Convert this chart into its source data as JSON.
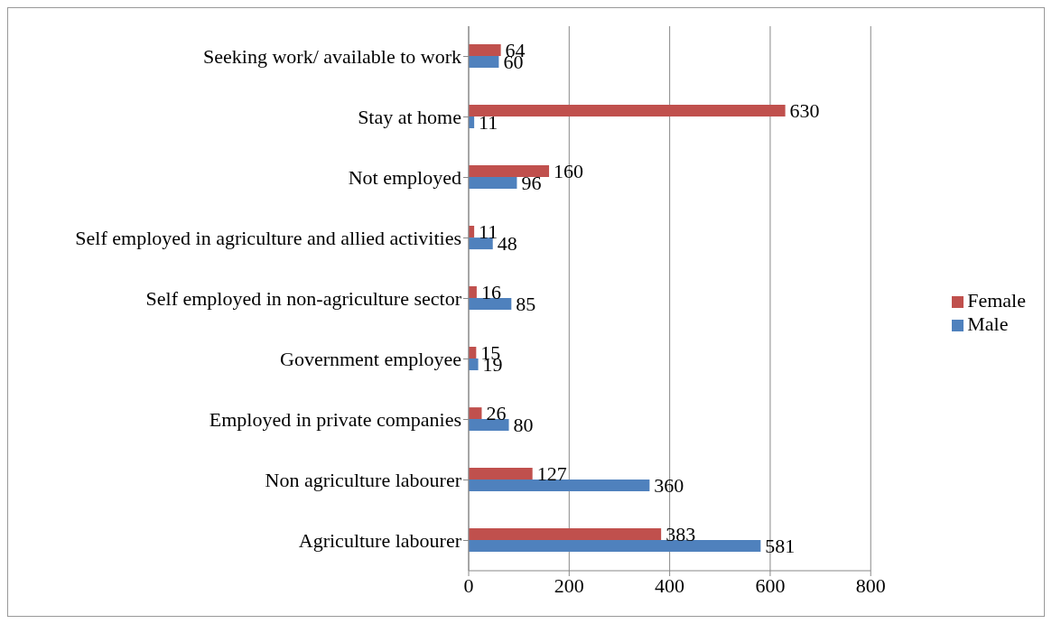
{
  "chart_data": {
    "type": "bar",
    "orientation": "horizontal",
    "categories": [
      "Seeking work/ available to work",
      "Stay at home",
      "Not employed",
      "Self employed in agriculture and allied activities",
      "Self employed in non-agriculture sector",
      "Government employee",
      "Employed in private companies",
      "Non agriculture labourer",
      "Agriculture labourer"
    ],
    "series": [
      {
        "name": "Female",
        "color": "#c0504d",
        "values": [
          64,
          630,
          160,
          11,
          16,
          15,
          26,
          127,
          383
        ]
      },
      {
        "name": "Male",
        "color": "#4f81bd",
        "values": [
          60,
          11,
          96,
          48,
          85,
          19,
          80,
          360,
          581
        ]
      }
    ],
    "xlim": [
      0,
      800
    ],
    "xticks": [
      0,
      200,
      400,
      600,
      800
    ],
    "grid": "x",
    "legend": "right",
    "data_labels": true
  }
}
